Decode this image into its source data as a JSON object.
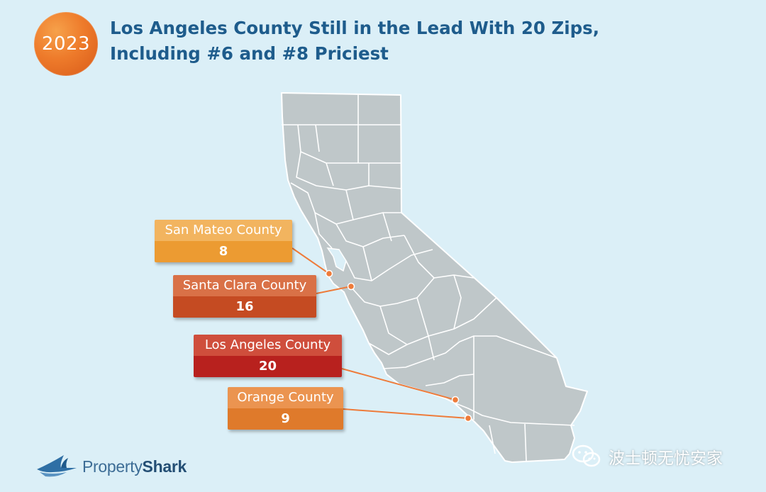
{
  "badge": {
    "year": "2023"
  },
  "title": {
    "line1": "Los Angeles County Still in the Lead With 20 Zips,",
    "line2": "Including #6 and #8 Priciest"
  },
  "colors": {
    "background": "#dbeff7",
    "state_fill": "#bfc7c9",
    "county_lines": "#ffffff",
    "title": "#1e5c8c",
    "leader_line": "#ee7b3a",
    "badge": "#ee7b2b"
  },
  "counties": [
    {
      "name": "San Mateo County",
      "count": "8",
      "color": "#ec9b32"
    },
    {
      "name": "Santa Clara County",
      "count": "16",
      "color": "#c54b22"
    },
    {
      "name": "Los Angeles County",
      "count": "20",
      "color": "#b8211e"
    },
    {
      "name": "Orange County",
      "count": "9",
      "color": "#df7a2b"
    }
  ],
  "logo": {
    "brand_light": "Property",
    "brand_bold": "Shark",
    "icon": "shark-fin-icon"
  },
  "watermark": {
    "text": "波士顿无忧安家",
    "icon": "wechat-icon"
  }
}
